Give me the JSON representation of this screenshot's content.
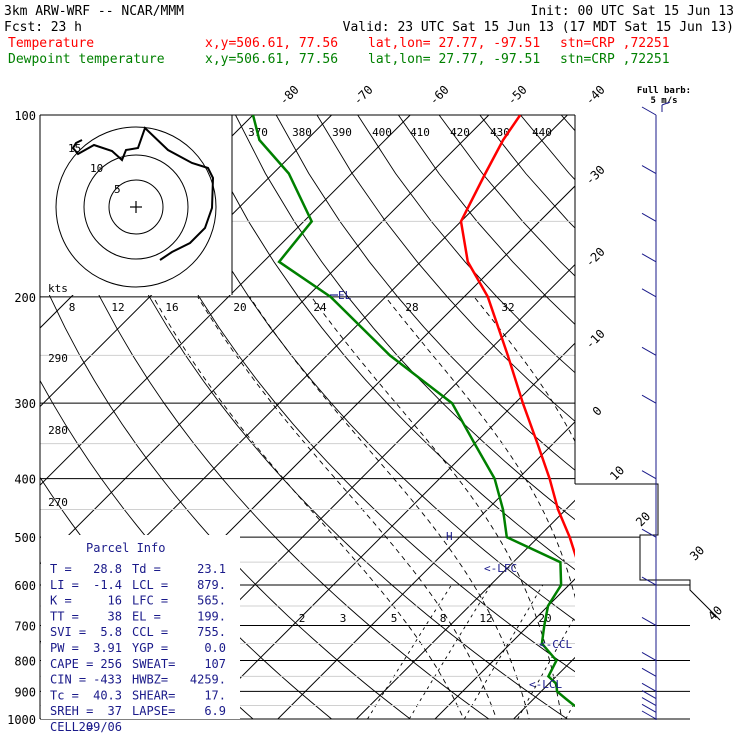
{
  "header": {
    "model": "3km ARW-WRF -- NCAR/MMM",
    "init": "Init: 00 UTC Sat 15 Jun 13",
    "fcst_label": "Fcst:",
    "fcst_value": "23 h",
    "valid": "Valid: 23 UTC Sat 15 Jun 13 (17 MDT Sat 15 Jun 13)",
    "temp_label": "Temperature",
    "dew_label": "Dewpoint temperature",
    "xy": "x,y=506.61, 77.56",
    "latlon": "lat,lon= 27.77, -97.51",
    "stn": "stn=CRP ,72251",
    "temp_color": "#ff0000",
    "dew_color": "#008000"
  },
  "parcel": {
    "title": "Parcel Info",
    "rows": [
      [
        "T   =",
        "28.8",
        "Td =",
        "23.1"
      ],
      [
        "LI  =",
        "-1.4",
        "LCL =",
        "879."
      ],
      [
        "K   =",
        "16",
        "LFC =",
        "565."
      ],
      [
        "TT  =",
        "38",
        "EL  =",
        "199."
      ],
      [
        "SVI =",
        "5.8",
        "CCL =",
        "755."
      ],
      [
        "PW  =",
        "3.91",
        "YGP =",
        "0.0"
      ],
      [
        "CAPE =",
        "256",
        "SWEAT=",
        "107"
      ],
      [
        "CIN =",
        "-433",
        "HWBZ=",
        "4259."
      ],
      [
        "Tc  =",
        "40.3",
        "SHEAR=",
        "17."
      ],
      [
        "SREH =",
        "37",
        "LAPSE=",
        "6.9"
      ],
      [
        "CELL =",
        "209/06",
        "",
        ""
      ]
    ]
  },
  "levels_text": {
    "el": "EL",
    "lfc": "<-LFC",
    "ccl": "<-CCL",
    "lcl": "<-LCL",
    "h": "H"
  },
  "hodograph": {
    "units": "kts",
    "ring_labels": [
      "5",
      "10",
      "15"
    ],
    "speed_axis": [
      "8",
      "12",
      "16",
      "20",
      "24",
      "28",
      "32"
    ]
  },
  "barb_legend": {
    "title": "Full barb:",
    "value": "5 m/s"
  },
  "chart_data": {
    "type": "skew-t",
    "pressure_axis": [
      100,
      200,
      300,
      400,
      500,
      600,
      700,
      800,
      900,
      1000
    ],
    "pressure_labels": [
      "100",
      "200",
      "300",
      "400",
      "500",
      "600",
      "700",
      "800",
      "900",
      "1000"
    ],
    "isotherm_labels": [
      "-80",
      "-70",
      "-60",
      "-50",
      "-40",
      "-30",
      "-20",
      "-10",
      "0",
      "10",
      "20",
      "30",
      "40"
    ],
    "theta_labels": [
      "370",
      "380",
      "390",
      "400",
      "410",
      "420",
      "430",
      "440"
    ],
    "theta_low_labels": [
      "290",
      "280",
      "270"
    ],
    "mixing_ratio_labels": [
      "2",
      "3",
      "5",
      "8",
      "12",
      "20"
    ],
    "temperature": {
      "name": "Temperature",
      "p": [
        1000,
        980,
        950,
        925,
        900,
        875,
        850,
        800,
        750,
        700,
        650,
        600,
        550,
        500,
        450,
        400,
        350,
        300,
        250,
        200,
        175,
        150,
        125,
        110,
        100
      ],
      "t": [
        29,
        23,
        23,
        22,
        21,
        19.6,
        18.2,
        15.3,
        12.2,
        9.1,
        6,
        2.3,
        -1.8,
        -6,
        -11,
        -16,
        -22,
        -29,
        -37,
        -47,
        -54,
        -60,
        -63,
        -65,
        -66
      ]
    },
    "dewpoint": {
      "name": "Dewpoint temperature",
      "p": [
        1000,
        980,
        950,
        925,
        900,
        875,
        850,
        800,
        750,
        700,
        650,
        600,
        550,
        500,
        450,
        400,
        350,
        300,
        250,
        200,
        175,
        150,
        125,
        110,
        100
      ],
      "td": [
        23,
        22,
        16,
        14,
        12,
        11,
        9,
        8,
        4,
        2,
        0,
        -1,
        -4,
        -14,
        -18,
        -23,
        -30,
        -38,
        -52,
        -67,
        -78,
        -79,
        -88,
        -96,
        -100
      ]
    },
    "wind_barbs": {
      "p": [
        1000,
        975,
        950,
        925,
        900,
        850,
        800,
        700,
        600,
        500,
        400,
        300,
        250,
        200,
        175,
        150,
        125,
        100
      ],
      "speed_ms": [
        5,
        5,
        5,
        5,
        5,
        5,
        5,
        5,
        5,
        5,
        5,
        5,
        5,
        5,
        5,
        5,
        5,
        5
      ]
    }
  }
}
